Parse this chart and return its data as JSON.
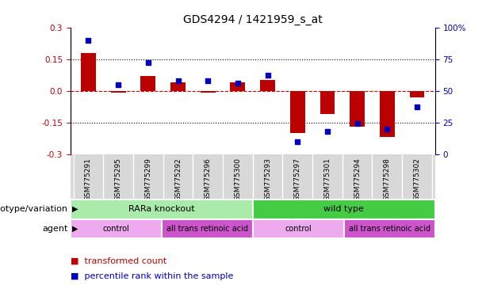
{
  "title": "GDS4294 / 1421959_s_at",
  "samples": [
    "GSM775291",
    "GSM775295",
    "GSM775299",
    "GSM775292",
    "GSM775296",
    "GSM775300",
    "GSM775293",
    "GSM775297",
    "GSM775301",
    "GSM775294",
    "GSM775298",
    "GSM775302"
  ],
  "bar_values": [
    0.18,
    -0.01,
    0.07,
    0.04,
    -0.01,
    0.04,
    0.05,
    -0.2,
    -0.11,
    -0.17,
    -0.22,
    -0.03
  ],
  "dot_values": [
    90,
    55,
    72,
    58,
    58,
    56,
    62,
    10,
    18,
    24,
    20,
    37
  ],
  "bar_color": "#bb0000",
  "dot_color": "#0000bb",
  "hline_color": "#cc0000",
  "ylim_left": [
    -0.3,
    0.3
  ],
  "ylim_right": [
    0,
    100
  ],
  "yticks_left": [
    -0.3,
    -0.15,
    0.0,
    0.15,
    0.3
  ],
  "yticks_right": [
    0,
    25,
    50,
    75,
    100
  ],
  "ytick_labels_right": [
    "0",
    "25",
    "50",
    "75",
    "100%"
  ],
  "dotted_lines": [
    -0.15,
    0.15
  ],
  "genotype_groups": [
    {
      "label": "RARa knockout",
      "start": 0,
      "end": 6,
      "color": "#aaeaaa"
    },
    {
      "label": "wild type",
      "start": 6,
      "end": 12,
      "color": "#44cc44"
    }
  ],
  "agent_groups": [
    {
      "label": "control",
      "start": 0,
      "end": 3,
      "color": "#eeaaee"
    },
    {
      "label": "all trans retinoic acid",
      "start": 3,
      "end": 6,
      "color": "#cc55cc"
    },
    {
      "label": "control",
      "start": 6,
      "end": 9,
      "color": "#eeaaee"
    },
    {
      "label": "all trans retinoic acid",
      "start": 9,
      "end": 12,
      "color": "#cc55cc"
    }
  ],
  "legend_items": [
    {
      "label": "transformed count",
      "color": "#bb0000"
    },
    {
      "label": "percentile rank within the sample",
      "color": "#0000bb"
    }
  ],
  "row_labels": [
    "genotype/variation",
    "agent"
  ],
  "background_color": "#ffffff",
  "bar_width": 0.5,
  "dot_size": 18,
  "title_fontsize": 10,
  "tick_fontsize": 7.5,
  "label_fontsize": 8,
  "annotation_fontsize": 8,
  "sample_fontsize": 6.5
}
